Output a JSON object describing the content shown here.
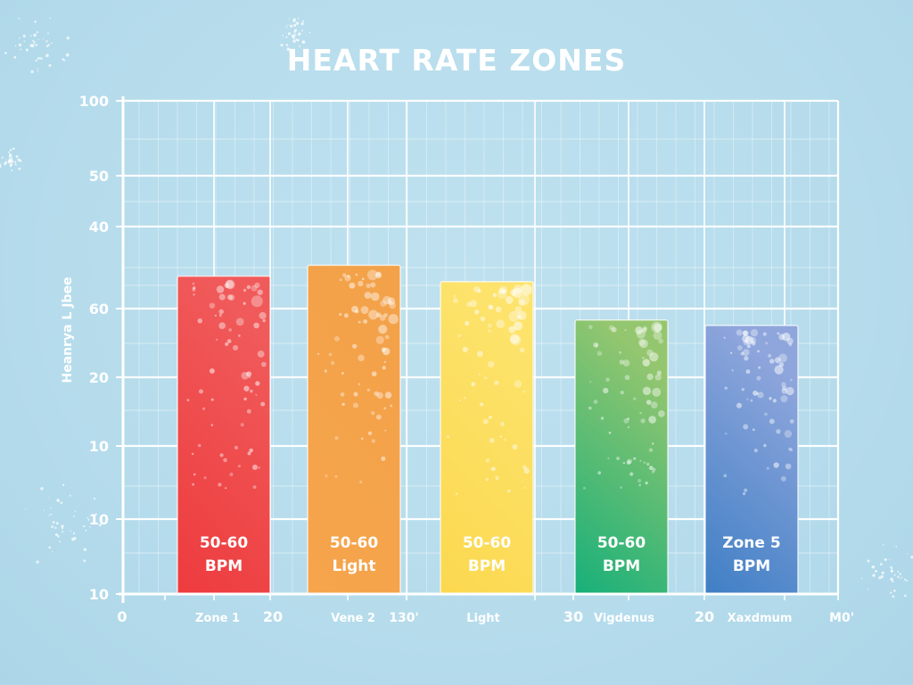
{
  "chart_data": {
    "type": "bar",
    "title": "HEART RATE ZONES",
    "xlabel": "",
    "ylabel": "Heanrya L Jbee",
    "ylim": [
      10,
      100
    ],
    "grid": true,
    "legend": "none",
    "y_tick_labels": [
      "100",
      "50",
      "40",
      "60",
      "20",
      "10",
      "10",
      "10"
    ],
    "x_tick_labels": [
      "0",
      "Zone 1",
      "20",
      "Vene 2",
      "130'",
      "Light",
      "30",
      "Vigdenus",
      "20",
      "Xaxdmum",
      "M0'"
    ],
    "categories": [
      "Zone 1",
      "Vene 2",
      "Light",
      "Vigdenus",
      "Xaxdmum"
    ],
    "values": [
      68,
      70,
      67,
      60,
      59
    ],
    "colors": [
      [
        "#ee3b3e",
        "#f05a5a"
      ],
      [
        "#f6a54c",
        "#f3a24a"
      ],
      [
        "#fbd84f",
        "#fde36c"
      ],
      [
        "#17b07a",
        "#94c66f"
      ],
      [
        "#3f7fc5",
        "#8fa6dc"
      ]
    ],
    "bar_labels": [
      [
        "50-60",
        "BPM"
      ],
      [
        "50-60",
        "Light"
      ],
      [
        "50-60",
        "BPM"
      ],
      [
        "50-60",
        "BPM"
      ],
      [
        "Zone 5",
        "BPM"
      ]
    ]
  }
}
